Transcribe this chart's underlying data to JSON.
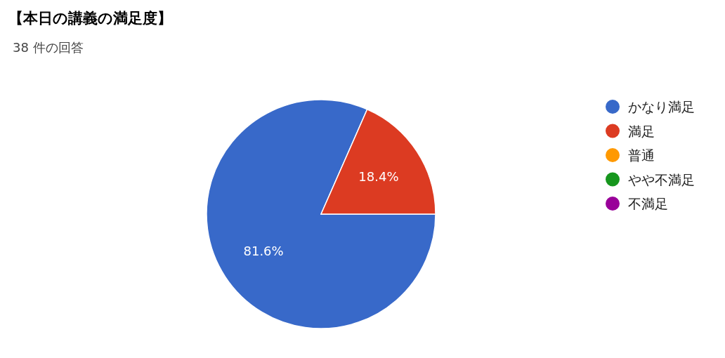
{
  "chart_data": {
    "type": "pie",
    "title": "【本日の講義の満足度】",
    "subtitle": "38 件の回答",
    "categories": [
      "かなり満足",
      "満足",
      "普通",
      "やや不満足",
      "不満足"
    ],
    "values": [
      81.6,
      18.4,
      0,
      0,
      0
    ],
    "value_labels": [
      "81.6%",
      "18.4%",
      null,
      null,
      null
    ],
    "colors": [
      "#3869c9",
      "#dc3b22",
      "#ff9900",
      "#16961d",
      "#990099"
    ],
    "legend": "right"
  }
}
